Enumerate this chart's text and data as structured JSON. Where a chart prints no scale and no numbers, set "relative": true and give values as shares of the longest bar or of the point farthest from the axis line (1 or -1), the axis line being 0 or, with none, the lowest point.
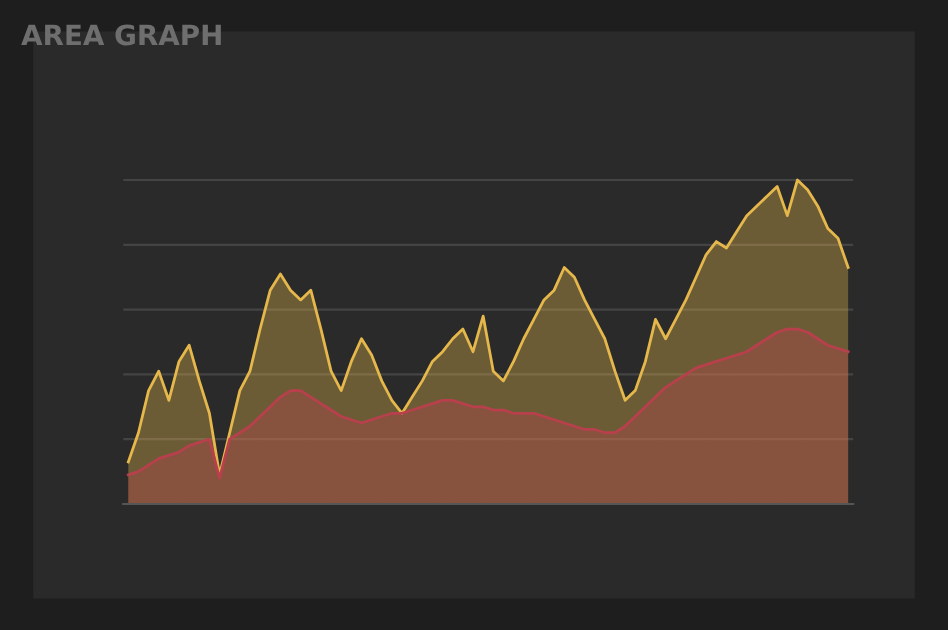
{
  "chart_data": {
    "type": "area",
    "title": "AREA GRAPH",
    "relative": true,
    "grid": "y",
    "legend": false,
    "categories": [
      null,
      null,
      null,
      null,
      null,
      null,
      null,
      null,
      null,
      null,
      null,
      null,
      null,
      null,
      null,
      null,
      null,
      null,
      null,
      null,
      null,
      null,
      null,
      null,
      null,
      null,
      null,
      null,
      null,
      null,
      null,
      null,
      null,
      null,
      null,
      null,
      null,
      null,
      null,
      null,
      null,
      null,
      null,
      null,
      null,
      null,
      null,
      null,
      null,
      null,
      null,
      null,
      null,
      null,
      null,
      null,
      null,
      null,
      null,
      null,
      null,
      null,
      null,
      null,
      null,
      null,
      null,
      null,
      null,
      null,
      null,
      null
    ],
    "series": [
      {
        "color": "#e6b84c",
        "values": [
          0.13,
          0.22,
          0.35,
          0.41,
          0.32,
          0.44,
          0.49,
          0.38,
          0.28,
          0.09,
          0.22,
          0.35,
          0.41,
          0.54,
          0.66,
          0.71,
          0.66,
          0.63,
          0.66,
          0.54,
          0.41,
          0.35,
          0.44,
          0.51,
          0.46,
          0.38,
          0.32,
          0.28,
          0.33,
          0.38,
          0.44,
          0.47,
          0.51,
          0.54,
          0.47,
          0.58,
          0.41,
          0.38,
          0.44,
          0.51,
          0.57,
          0.63,
          0.66,
          0.73,
          0.7,
          0.63,
          0.57,
          0.51,
          0.41,
          0.32,
          0.35,
          0.44,
          0.57,
          0.51,
          0.57,
          0.63,
          0.7,
          0.77,
          0.81,
          0.79,
          0.84,
          0.89,
          0.92,
          0.95,
          0.98,
          0.89,
          1.0,
          0.97,
          0.92,
          0.85,
          0.82,
          0.73
        ]
      },
      {
        "color": "#b8404c",
        "values": [
          0.09,
          0.1,
          0.12,
          0.14,
          0.15,
          0.16,
          0.18,
          0.19,
          0.2,
          0.08,
          0.2,
          0.22,
          0.24,
          0.27,
          0.3,
          0.33,
          0.35,
          0.35,
          0.33,
          0.31,
          0.29,
          0.27,
          0.26,
          0.25,
          0.26,
          0.27,
          0.28,
          0.28,
          0.29,
          0.3,
          0.31,
          0.32,
          0.32,
          0.31,
          0.3,
          0.3,
          0.29,
          0.29,
          0.28,
          0.28,
          0.28,
          0.27,
          0.26,
          0.25,
          0.24,
          0.23,
          0.23,
          0.22,
          0.22,
          0.24,
          0.27,
          0.3,
          0.33,
          0.36,
          0.38,
          0.4,
          0.42,
          0.43,
          0.44,
          0.45,
          0.46,
          0.47,
          0.49,
          0.51,
          0.53,
          0.54,
          0.54,
          0.53,
          0.51,
          0.49,
          0.48,
          0.47
        ]
      }
    ]
  }
}
